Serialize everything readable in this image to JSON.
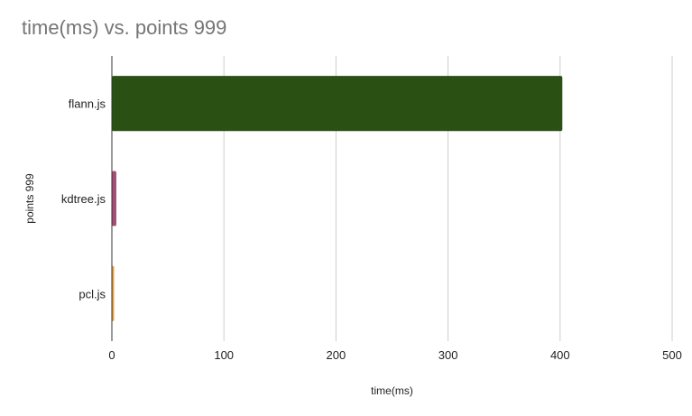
{
  "chart_data": {
    "type": "bar",
    "orientation": "horizontal",
    "title": "time(ms) vs. points 999",
    "xlabel": "time(ms)",
    "ylabel": "points 999",
    "categories": [
      "flann.js",
      "kdtree.js",
      "pcl.js"
    ],
    "values": [
      402,
      4,
      1.5
    ],
    "colors": [
      "#2a5113",
      "#a44e73",
      "#e8a33d"
    ],
    "xlim": [
      0,
      500
    ],
    "x_ticks": [
      0,
      100,
      200,
      300,
      400,
      500
    ],
    "grid": true,
    "legend": "none"
  }
}
